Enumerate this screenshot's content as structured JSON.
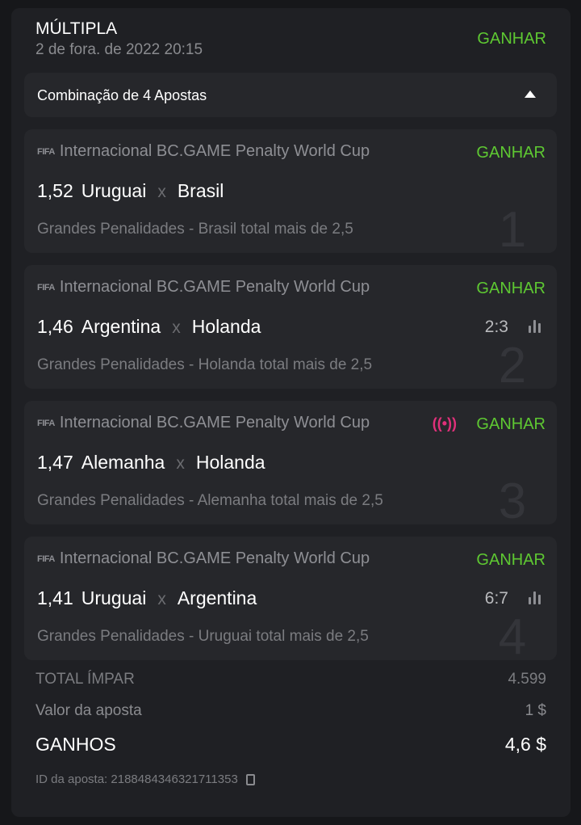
{
  "header": {
    "title": "MÚLTIPLA",
    "date": "2 de fora. de 2022 20:15",
    "status": "GANHAR"
  },
  "combo": {
    "label": "Combinação de 4 Apostas"
  },
  "legs": [
    {
      "number": "1",
      "league": "Internacional BC.GAME Penalty World Cup",
      "status": "GANHAR",
      "odds": "1,52",
      "home": "Uruguai",
      "sep": "x",
      "away": "Brasil",
      "market": "Grandes Penalidades - Brasil total mais de 2,5",
      "score": ""
    },
    {
      "number": "2",
      "league": "Internacional BC.GAME Penalty World Cup",
      "status": "GANHAR",
      "odds": "1,46",
      "home": "Argentina",
      "sep": "x",
      "away": "Holanda",
      "market": "Grandes Penalidades - Holanda total mais de 2,5",
      "score": "2:3"
    },
    {
      "number": "3",
      "league": "Internacional BC.GAME Penalty World Cup",
      "status": "GANHAR",
      "odds": "1,47",
      "home": "Alemanha",
      "sep": "x",
      "away": "Holanda",
      "market": "Grandes Penalidades - Alemanha total mais de 2,5",
      "score": ""
    },
    {
      "number": "4",
      "league": "Internacional BC.GAME Penalty World Cup",
      "status": "GANHAR",
      "odds": "1,41",
      "home": "Uruguai",
      "sep": "x",
      "away": "Argentina",
      "market": "Grandes Penalidades - Uruguai total mais de 2,5",
      "score": "6:7"
    }
  ],
  "summary": {
    "total_label": "TOTAL ÍMPAR",
    "total_value": "4.599",
    "stake_label": "Valor da aposta",
    "stake_value": "1 $",
    "winnings_label": "GANHOS",
    "winnings_value": "4,6 $",
    "id_label": "ID da aposta: 2188484346321711353"
  },
  "logo_text": "FIFA",
  "colors": {
    "win": "#5ec832",
    "live": "#e0307a",
    "background": "#16171a",
    "card": "#1f2024",
    "panel": "#26272b"
  }
}
